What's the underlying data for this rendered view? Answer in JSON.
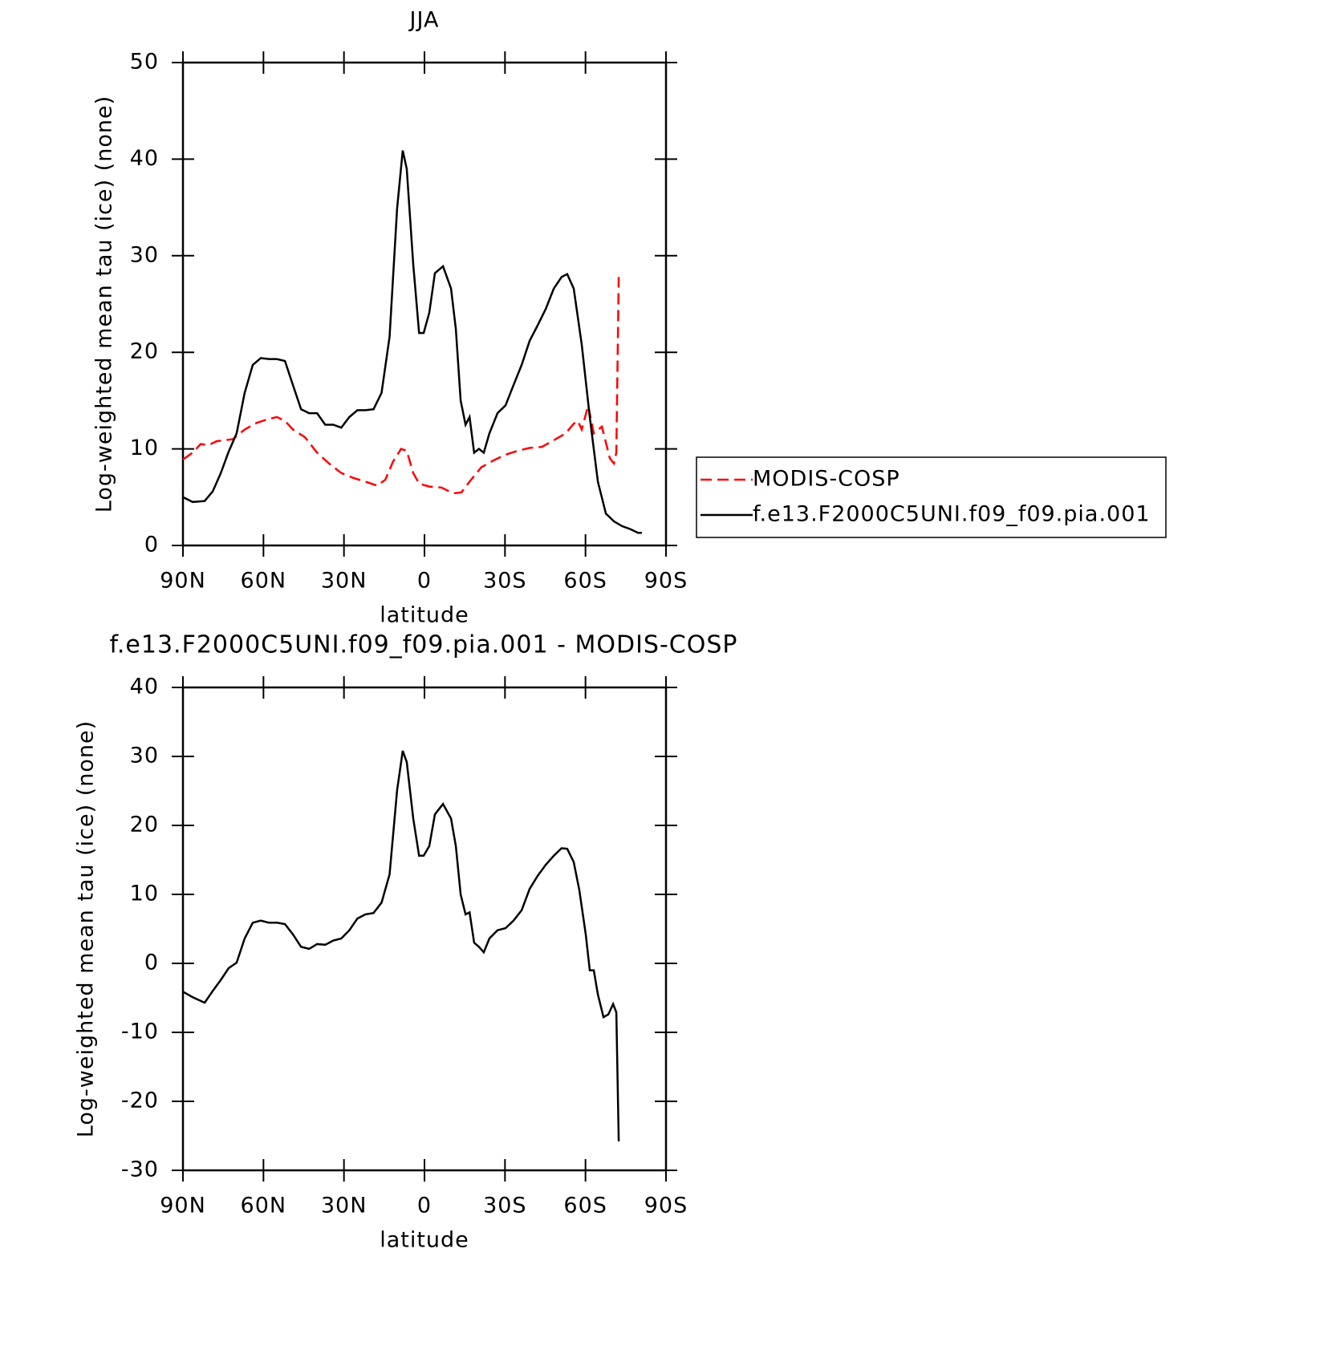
{
  "chart_data": [
    {
      "type": "line",
      "title": "JJA",
      "xlabel": "latitude",
      "ylabel": "Log-weighted mean tau (ice) (none)",
      "xlim": [
        90,
        -90
      ],
      "xticks": [
        {
          "value": 90,
          "label": "90N"
        },
        {
          "value": 60,
          "label": "60N"
        },
        {
          "value": 30,
          "label": "30N"
        },
        0,
        {
          "value": -30,
          "label": "30S"
        },
        {
          "value": -60,
          "label": "60S"
        },
        {
          "value": -90,
          "label": "90S"
        }
      ],
      "ylim": [
        0,
        50
      ],
      "yticks": [
        0,
        10,
        20,
        30,
        40,
        50
      ],
      "legend": "right",
      "series": [
        {
          "name": "MODIS-COSP",
          "color": "#ff0000",
          "style": "dashed",
          "x": [
            90,
            86.4,
            83.4,
            80.4,
            77.4,
            71.5,
            67,
            62.5,
            58,
            55,
            52,
            49,
            44.5,
            40,
            35.6,
            31,
            26.6,
            22,
            17.6,
            14.6,
            11.7,
            8.7,
            6.6,
            4.2,
            2,
            -1.8,
            -6.3,
            -10.8,
            -13.8,
            -16.8,
            -21.2,
            -25.7,
            -30.2,
            -34.7,
            -39.2,
            -43.7,
            -48.2,
            -52.6,
            -55.6,
            -57.1,
            -58.6,
            -61,
            -63.1,
            -66.1,
            -69.1,
            -70.6,
            -71.5,
            -72.4
          ],
          "values": [
            8.9,
            9.6,
            10.5,
            10.4,
            10.8,
            11,
            12,
            12.7,
            13.1,
            13.3,
            12.9,
            12,
            11.2,
            9.6,
            8.5,
            7.5,
            7.0,
            6.6,
            6.2,
            6.8,
            8.7,
            10,
            9.8,
            7.5,
            6.4,
            6.1,
            6.0,
            5.4,
            5.5,
            6.6,
            8.1,
            8.8,
            9.4,
            9.8,
            10.1,
            10.2,
            10.9,
            11.6,
            12.6,
            12.9,
            12,
            14.5,
            11.6,
            12.3,
            9,
            8.5,
            9.6,
            27.8
          ]
        },
        {
          "name": "f.e13.F2000C5UNI.f09_f09.pia.001",
          "color": "#000000",
          "style": "solid",
          "x": [
            90,
            86.4,
            81.9,
            78.9,
            75.9,
            73,
            70,
            67,
            64,
            61,
            58,
            55,
            52,
            49,
            46,
            43,
            40,
            37,
            34,
            31,
            28,
            25,
            22,
            19,
            16,
            13,
            10.2,
            8.1,
            6.6,
            4.2,
            2,
            0.3,
            -1.8,
            -3.9,
            -6.9,
            -9.9,
            -11.7,
            -13.5,
            -15.3,
            -16.8,
            -18.5,
            -20.3,
            -22.1,
            -24.2,
            -27.2,
            -30.2,
            -33.2,
            -36.2,
            -39.2,
            -42.2,
            -45.2,
            -48.2,
            -51.1,
            -53.2,
            -55.6,
            -58.6,
            -61.6,
            -64.6,
            -67.6,
            -70.6,
            -73.6,
            -76.6,
            -79.6,
            -81
          ],
          "values": [
            5.0,
            4.5,
            4.6,
            5.6,
            7.5,
            9.7,
            11.6,
            15.8,
            18.7,
            19.4,
            19.3,
            19.3,
            19.1,
            16.6,
            14.1,
            13.7,
            13.7,
            12.5,
            12.5,
            12.2,
            13.3,
            14,
            14,
            14.1,
            15.8,
            21.6,
            34.9,
            40.9,
            39,
            29.1,
            22,
            22,
            24.1,
            28.2,
            28.9,
            26.6,
            22.4,
            15,
            12.5,
            13.3,
            9.6,
            10,
            9.6,
            11.6,
            13.7,
            14.5,
            16.6,
            18.7,
            21.2,
            22.8,
            24.5,
            26.6,
            27.8,
            28.1,
            26.6,
            20.8,
            13.3,
            6.6,
            3.3,
            2.5,
            2.0,
            1.7,
            1.3,
            1.3
          ]
        }
      ]
    },
    {
      "type": "line",
      "title": "f.e13.F2000C5UNI.f09_f09.pia.001 - MODIS-COSP",
      "xlabel": "latitude",
      "ylabel": "Log-weighted mean tau (ice) (none)",
      "xlim": [
        90,
        -90
      ],
      "xticks": [
        {
          "value": 90,
          "label": "90N"
        },
        {
          "value": 60,
          "label": "60N"
        },
        {
          "value": 30,
          "label": "30N"
        },
        0,
        {
          "value": -30,
          "label": "30S"
        },
        {
          "value": -60,
          "label": "60S"
        },
        {
          "value": -90,
          "label": "90S"
        }
      ],
      "ylim": [
        -30,
        40
      ],
      "yticks": [
        -30,
        -20,
        -10,
        0,
        10,
        20,
        30,
        40
      ],
      "series": [
        {
          "color": "#000000",
          "style": "solid",
          "x": [
            90,
            86.4,
            81.9,
            78.9,
            75.9,
            73,
            70,
            67,
            64,
            61,
            58,
            55,
            52,
            49,
            46,
            43,
            40,
            37,
            34,
            31,
            28,
            25,
            22,
            19,
            16,
            13,
            10.2,
            8.1,
            6.6,
            4.2,
            2,
            0.3,
            -1.8,
            -3.9,
            -6.9,
            -9.9,
            -11.7,
            -13.5,
            -15.3,
            -16.8,
            -18.5,
            -20.3,
            -22.1,
            -24.2,
            -27.2,
            -30.2,
            -33.2,
            -36.2,
            -39.2,
            -42.2,
            -45.2,
            -48.2,
            -51.1,
            -53.2,
            -55.6,
            -57.7,
            -60.1,
            -61.6,
            -63.1,
            -64.6,
            -66.7,
            -68.5,
            -70.3,
            -71.5,
            -72.4
          ],
          "values": [
            -4.1,
            -4.9,
            -5.7,
            -4,
            -2.4,
            -0.7,
            0.1,
            3.6,
            5.9,
            6.2,
            5.9,
            5.9,
            5.7,
            4.2,
            2.4,
            2.1,
            2.8,
            2.7,
            3.3,
            3.6,
            4.8,
            6.5,
            7.1,
            7.3,
            8.8,
            12.9,
            25.1,
            30.8,
            29.2,
            21.0,
            15.6,
            15.6,
            17,
            21.6,
            23.1,
            21,
            17,
            10,
            7.1,
            7.4,
            3.0,
            2.4,
            1.6,
            3.6,
            4.8,
            5.1,
            6.2,
            7.7,
            10.8,
            12.7,
            14.3,
            15.6,
            16.7,
            16.6,
            14.7,
            10.6,
            4.2,
            -1,
            -1,
            -4.5,
            -7.8,
            -7.4,
            -5.9,
            -7.1,
            -25.8
          ]
        }
      ]
    }
  ]
}
